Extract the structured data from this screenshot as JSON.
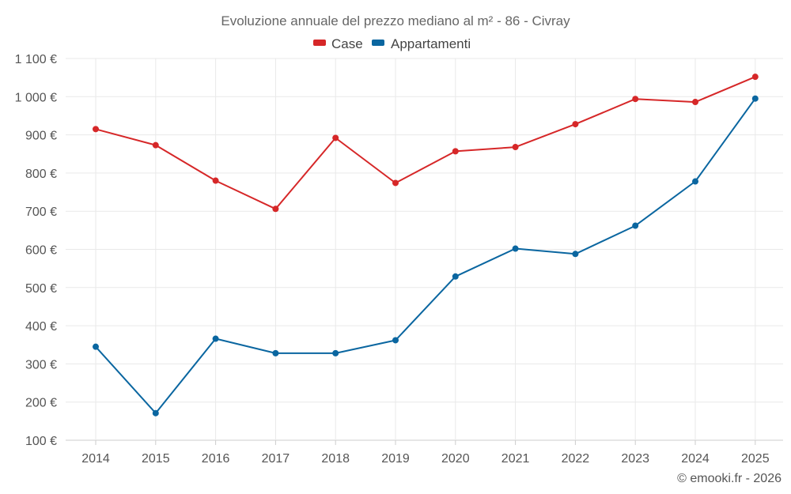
{
  "chart_data": {
    "type": "line",
    "title": "Evoluzione annuale del prezzo mediano al m² - 86 - Civray",
    "xlabel": "",
    "ylabel": "",
    "categories": [
      "2014",
      "2015",
      "2016",
      "2017",
      "2018",
      "2019",
      "2020",
      "2021",
      "2022",
      "2023",
      "2024",
      "2025"
    ],
    "series": [
      {
        "name": "Case",
        "color": "#d62728",
        "values": [
          915,
          873,
          780,
          706,
          892,
          774,
          857,
          868,
          928,
          994,
          986,
          1052
        ]
      },
      {
        "name": "Appartamenti",
        "color": "#0a66a0",
        "values": [
          345,
          171,
          366,
          328,
          328,
          362,
          529,
          602,
          588,
          662,
          778,
          995
        ]
      }
    ],
    "ylim": [
      100,
      1100
    ],
    "yticks": [
      100,
      200,
      300,
      400,
      500,
      600,
      700,
      800,
      900,
      1000,
      1100
    ],
    "ytick_labels": [
      "100 €",
      "200 €",
      "300 €",
      "400 €",
      "500 €",
      "600 €",
      "700 €",
      "800 €",
      "900 €",
      "1 000 €",
      "1 100 €"
    ],
    "grid": true,
    "legend_position": "top-center"
  },
  "credit": "© emooki.fr - 2026"
}
